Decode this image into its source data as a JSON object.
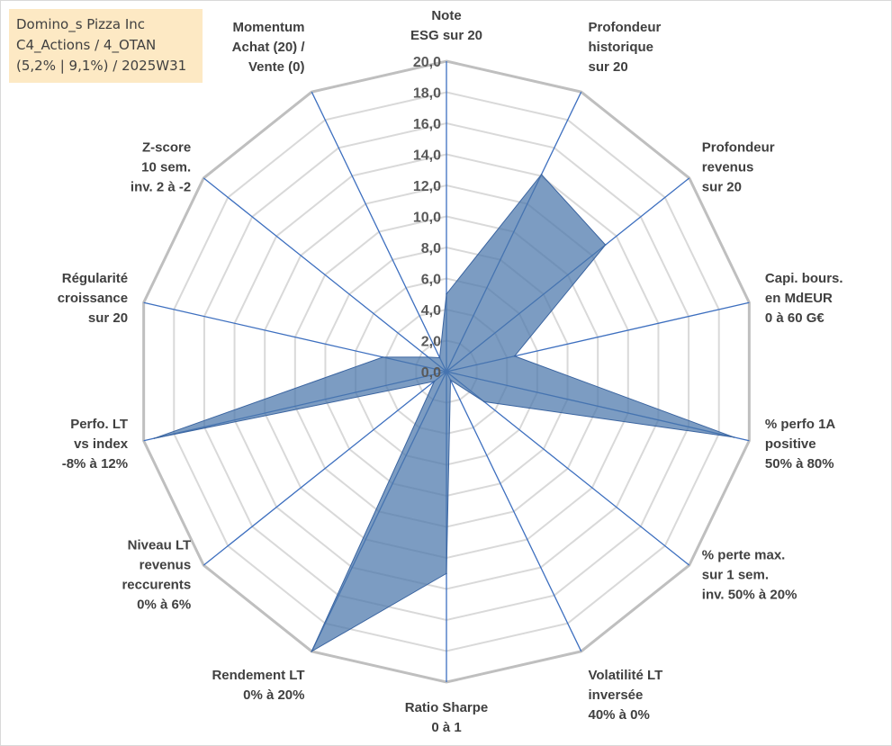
{
  "info": {
    "line1": "Domino_s Pizza Inc",
    "line2": "C4_Actions / 4_OTAN",
    "line3": "(5,2% | 9,1%) / 2025W31"
  },
  "chart_data": {
    "type": "radar",
    "r_range": [
      0,
      20
    ],
    "r_ticks": [
      "0,0",
      "2,0",
      "4,0",
      "6,0",
      "8,0",
      "10,0",
      "12,0",
      "14,0",
      "16,0",
      "18,0",
      "20,0"
    ],
    "axes": [
      [
        "Note",
        "ESG sur 20"
      ],
      [
        "Profondeur",
        "historique",
        "sur 20"
      ],
      [
        "Profondeur",
        "revenus",
        "sur 20"
      ],
      [
        "Capi. bours.",
        "en MdEUR",
        "0 à 60 G€"
      ],
      [
        "% perfo 1A",
        "positive",
        "50% à 80%"
      ],
      [
        "% perte max.",
        "sur 1 sem.",
        "inv. 50% à 20%"
      ],
      [
        "Volatilité LT",
        "inversée",
        "40% à 0%"
      ],
      [
        "Ratio Sharpe",
        "0 à 1"
      ],
      [
        "Rendement LT",
        "0% à 20%"
      ],
      [
        "Niveau LT",
        "revenus",
        "reccurents",
        "0% à 6%"
      ],
      [
        "Perfo. LT",
        "vs index",
        "-8% à 12%"
      ],
      [
        "Régularité",
        "croissance",
        "sur 20"
      ],
      [
        "Z-score",
        "10 sem.",
        "inv. 2 à -2"
      ],
      [
        "Momentum",
        "Achat (20) /",
        "Vente (0)"
      ]
    ],
    "series": [
      {
        "values": [
          5.0,
          14.1,
          13.1,
          4.5,
          19.0,
          3.1,
          0.6,
          13.0,
          20.0,
          1.0,
          19.3,
          4.2,
          1.5,
          1.0
        ],
        "color": "#4a76aa"
      }
    ],
    "colors": {
      "grid": "#c0c0c0",
      "spoke": "#3d6fbf",
      "fill": "#4a76aa"
    },
    "grid": true
  }
}
